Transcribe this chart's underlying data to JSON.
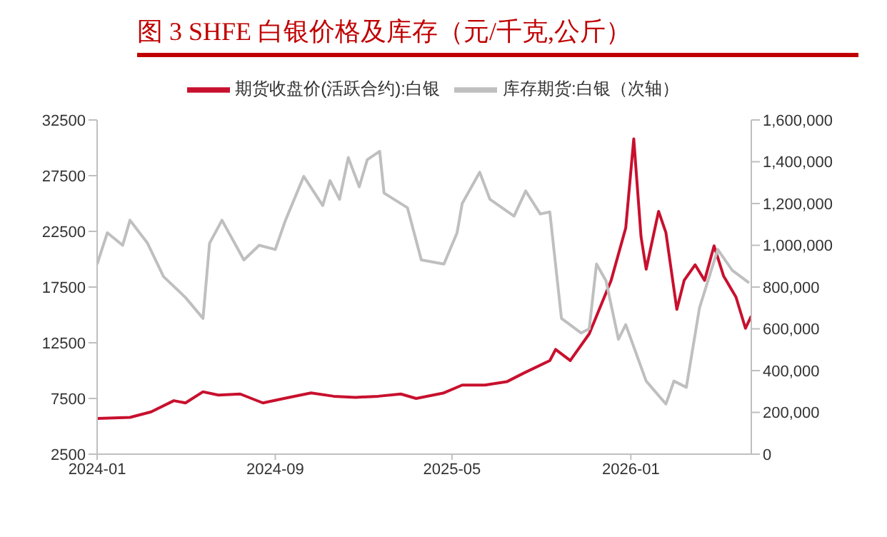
{
  "chart_data": {
    "type": "line",
    "title": "图 3  SHFE 白银价格及库存（元/千克,公斤）",
    "legend": "top",
    "marker": "none",
    "line_style": "solid",
    "xlim": [
      "2024-01-01",
      "2026-06-15"
    ],
    "xticks": [
      "2024-01",
      "2024-09",
      "2025-05",
      "2026-01"
    ],
    "ylim": [
      2500,
      32500
    ],
    "yticks": [
      2500,
      7500,
      12500,
      17500,
      22500,
      27500,
      32500
    ],
    "y2lim": [
      0,
      1600000
    ],
    "y2ticks": [
      0,
      {
        "value": 200000,
        "label": "200,000"
      },
      {
        "value": 400000,
        "label": "400,000"
      },
      {
        "value": 600000,
        "label": "600,000"
      },
      {
        "value": 800000,
        "label": "800,000"
      },
      {
        "value": 1000000,
        "label": "1,000,000"
      },
      {
        "value": 1200000,
        "label": "1,200,000"
      },
      {
        "value": 1400000,
        "label": "1,400,000"
      },
      {
        "value": 1600000,
        "label": "1,600,000"
      }
    ],
    "series": [
      {
        "name": "期货收盘价(活跃合约):白银",
        "color": "#c8102e",
        "x": [
          "2024-01-01",
          "2024-02-15",
          "2024-03-15",
          "2024-04-15",
          "2024-05-01",
          "2024-05-25",
          "2024-06-15",
          "2024-07-15",
          "2024-08-15",
          "2024-09-20",
          "2024-10-20",
          "2024-11-20",
          "2024-12-20",
          "2025-01-20",
          "2025-02-20",
          "2025-03-13",
          "2025-04-20",
          "2025-05-15",
          "2025-06-15",
          "2025-07-15",
          "2025-08-08",
          "2025-09-12",
          "2025-09-20",
          "2025-10-10",
          "2025-11-05",
          "2025-12-05",
          "2025-12-25",
          "2026-01-05",
          "2026-01-15",
          "2026-01-22",
          "2026-02-08",
          "2026-02-18",
          "2026-03-05",
          "2026-03-15",
          "2026-03-30",
          "2026-04-12",
          "2026-04-25",
          "2026-05-08",
          "2026-05-25",
          "2026-06-07",
          "2026-06-15"
        ],
        "values": [
          5700,
          5800,
          6300,
          7300,
          7100,
          8100,
          7800,
          7900,
          7100,
          7600,
          8000,
          7700,
          7600,
          7700,
          7900,
          7500,
          8000,
          8700,
          8700,
          9000,
          9800,
          10900,
          11900,
          10900,
          13300,
          18100,
          22800,
          30800,
          22000,
          19100,
          24300,
          22400,
          15500,
          18100,
          19500,
          18100,
          21200,
          18500,
          16600,
          13800,
          14900
        ]
      },
      {
        "name": "库存期货:白银（次轴）",
        "color": "#bfbfbf",
        "axis": "y2",
        "x": [
          "2024-01-01",
          "2024-01-15",
          "2024-02-05",
          "2024-02-15",
          "2024-03-10",
          "2024-04-01",
          "2024-05-01",
          "2024-05-25",
          "2024-06-03",
          "2024-06-20",
          "2024-07-20",
          "2024-08-10",
          "2024-09-01",
          "2024-09-15",
          "2024-10-10",
          "2024-11-05",
          "2024-11-15",
          "2024-11-28",
          "2024-12-10",
          "2024-12-25",
          "2025-01-05",
          "2025-01-22",
          "2025-01-28",
          "2025-03-01",
          "2025-03-20",
          "2025-04-20",
          "2025-05-08",
          "2025-05-15",
          "2025-06-08",
          "2025-06-22",
          "2025-07-25",
          "2025-08-10",
          "2025-08-30",
          "2025-09-12",
          "2025-09-28",
          "2025-10-25",
          "2025-11-05",
          "2025-11-15",
          "2025-11-28",
          "2025-12-15",
          "2025-12-25",
          "2026-01-22",
          "2026-02-18",
          "2026-03-01",
          "2026-03-18",
          "2026-04-05",
          "2026-04-30",
          "2026-05-20",
          "2026-06-12"
        ],
        "values": [
          910000,
          1060000,
          1000000,
          1120000,
          1010000,
          850000,
          750000,
          650000,
          1010000,
          1120000,
          930000,
          1000000,
          980000,
          1120000,
          1330000,
          1190000,
          1310000,
          1220000,
          1420000,
          1280000,
          1410000,
          1450000,
          1250000,
          1180000,
          930000,
          910000,
          1060000,
          1200000,
          1350000,
          1220000,
          1140000,
          1260000,
          1150000,
          1160000,
          650000,
          580000,
          600000,
          910000,
          830000,
          550000,
          620000,
          350000,
          240000,
          350000,
          320000,
          700000,
          980000,
          880000,
          820000
        ]
      }
    ]
  }
}
